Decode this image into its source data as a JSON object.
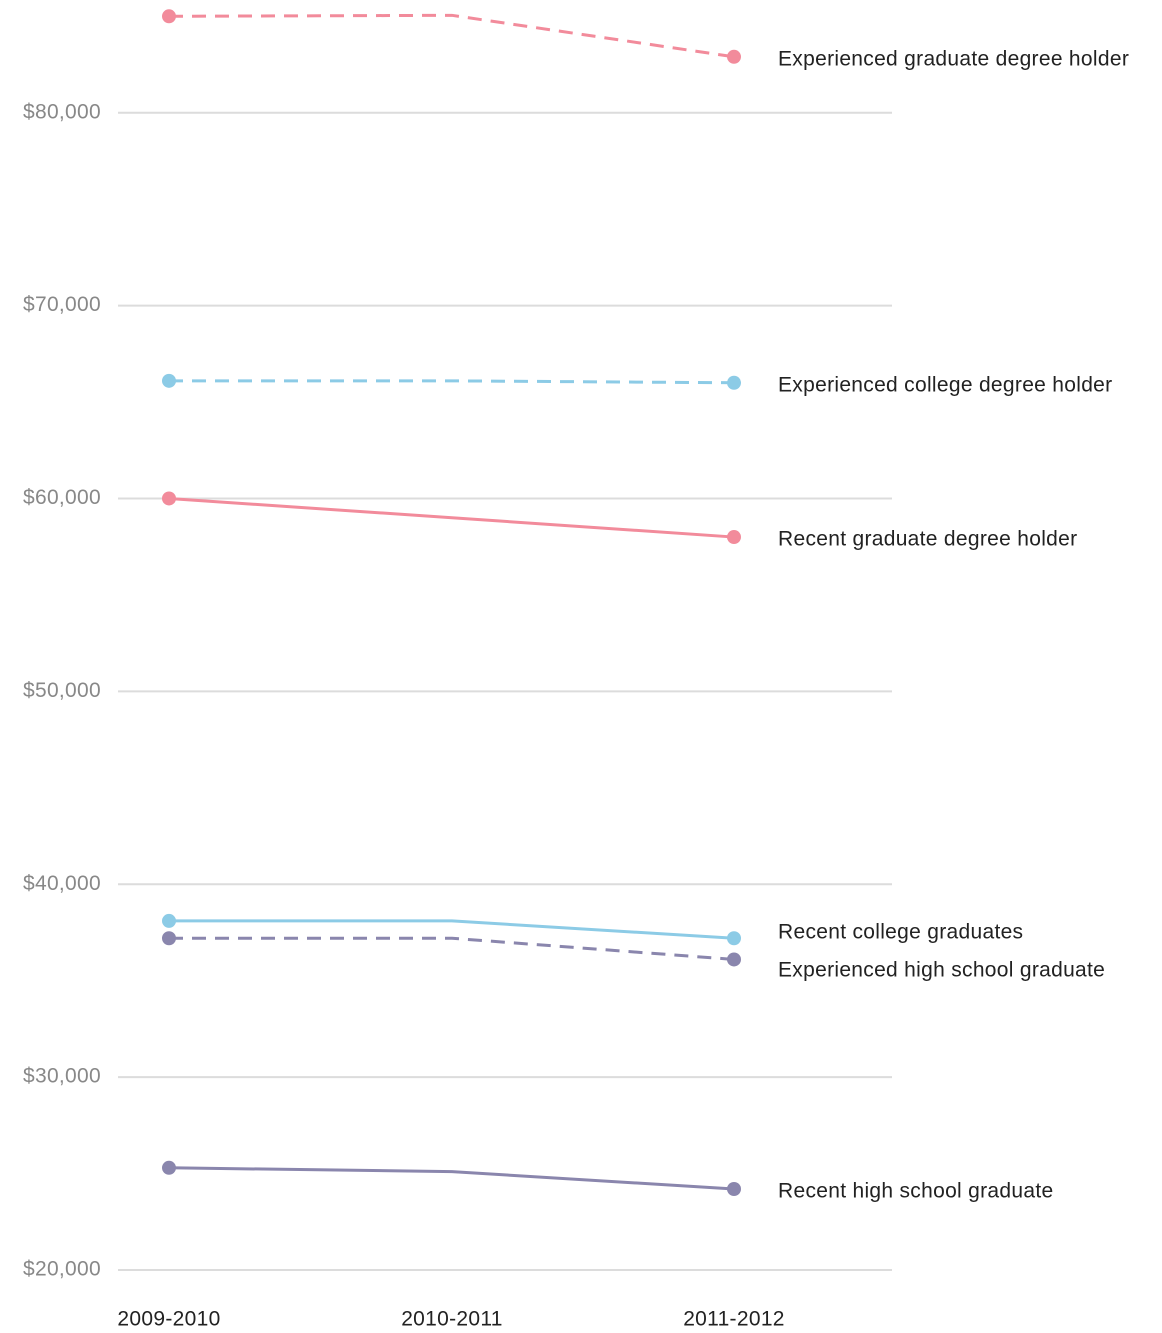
{
  "chart_data": {
    "type": "line",
    "categories": [
      "2009-2010",
      "2010-2011",
      "2011-2012"
    ],
    "series": [
      {
        "name": "Experienced graduate degree holder",
        "color": "#f28b9b",
        "dashed": true,
        "values": [
          85000,
          85050,
          82900
        ]
      },
      {
        "name": "Experienced college degree holder",
        "color": "#8ccbe6",
        "dashed": true,
        "values": [
          66100,
          66100,
          66000
        ]
      },
      {
        "name": "Recent graduate degree holder",
        "color": "#f28b9b",
        "dashed": false,
        "values": [
          60000,
          59000,
          58000
        ]
      },
      {
        "name": "Recent college graduates",
        "color": "#8ccbe6",
        "dashed": false,
        "values": [
          38100,
          38100,
          37200
        ]
      },
      {
        "name": "Experienced high school graduate",
        "color": "#8a86ad",
        "dashed": true,
        "values": [
          37200,
          37200,
          36100
        ]
      },
      {
        "name": "Recent high school graduate",
        "color": "#8a86ad",
        "dashed": false,
        "values": [
          25300,
          25100,
          24200
        ]
      }
    ],
    "ylim": [
      20000,
      86000
    ],
    "yticks": [
      {
        "value": 20000,
        "label": "$20,000"
      },
      {
        "value": 30000,
        "label": "$30,000"
      },
      {
        "value": 40000,
        "label": "$40,000"
      },
      {
        "value": 50000,
        "label": "$50,000"
      },
      {
        "value": 60000,
        "label": "$60,000"
      },
      {
        "value": 70000,
        "label": "$70,000"
      },
      {
        "value": 80000,
        "label": "$80,000"
      }
    ],
    "grid": true
  }
}
